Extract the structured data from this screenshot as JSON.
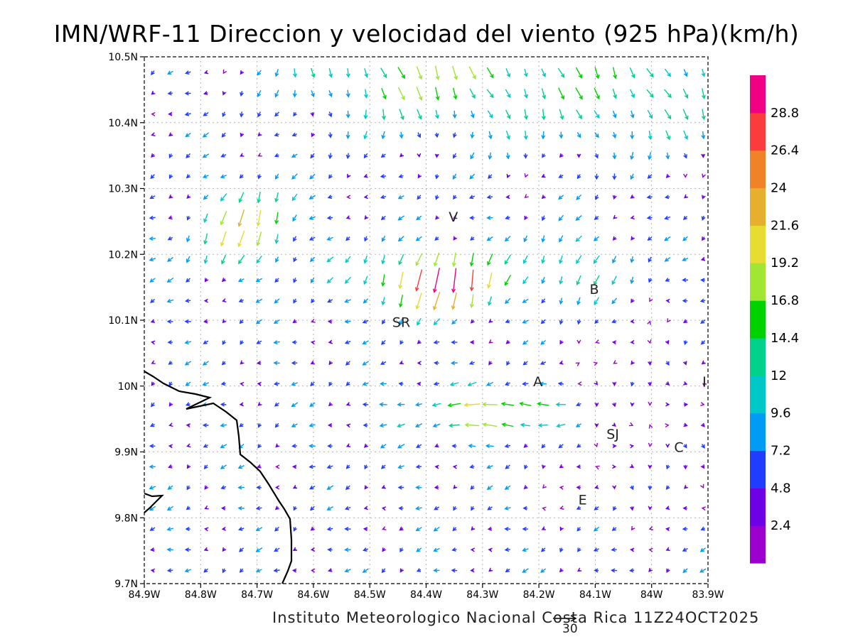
{
  "title": "IMN/WRF-11 Direccion y velocidad del viento (925 hPa)(km/h)",
  "footer": {
    "credit": "Instituto Meteorologico Nacional Costa Rica 11Z24OCT2025",
    "reference_vector_value": "30"
  },
  "map": {
    "lon_range": [
      -84.9,
      -83.9
    ],
    "lat_range": [
      9.7,
      10.5
    ],
    "x_tick_labels": [
      "84.9W",
      "84.8W",
      "84.7W",
      "84.6W",
      "84.5W",
      "84.4W",
      "84.3W",
      "84.2W",
      "84.1W",
      "84W",
      "83.9W"
    ],
    "y_tick_labels": [
      "9.7N",
      "9.8N",
      "9.9N",
      "10N",
      "10.1N",
      "10.2N",
      "10.3N",
      "10.4N",
      "10.5N"
    ],
    "grid": true,
    "coastline_color": "#000000",
    "cities": [
      {
        "label": "V",
        "lon": -84.36,
        "lat": 10.25
      },
      {
        "label": "B",
        "lon": -84.11,
        "lat": 10.14
      },
      {
        "label": "SR",
        "lon": -84.46,
        "lat": 10.09
      },
      {
        "label": "A",
        "lon": -84.21,
        "lat": 10.0
      },
      {
        "label": "I",
        "lon": -83.91,
        "lat": 10.0
      },
      {
        "label": "SJ",
        "lon": -84.08,
        "lat": 9.92
      },
      {
        "label": "C",
        "lon": -83.96,
        "lat": 9.9
      },
      {
        "label": "E",
        "lon": -84.13,
        "lat": 9.82
      }
    ]
  },
  "colorbar": {
    "levels": [
      "2.4",
      "4.8",
      "7.2",
      "9.6",
      "12",
      "14.4",
      "16.8",
      "19.2",
      "21.6",
      "24",
      "26.4",
      "28.8"
    ],
    "colors": [
      "#9b00cf",
      "#6e00e6",
      "#1f3cff",
      "#009bf5",
      "#00c8c8",
      "#00d28c",
      "#00d200",
      "#a0e632",
      "#e6dc32",
      "#e6af2d",
      "#f08228",
      "#fa3c3c",
      "#f00082"
    ]
  }
}
